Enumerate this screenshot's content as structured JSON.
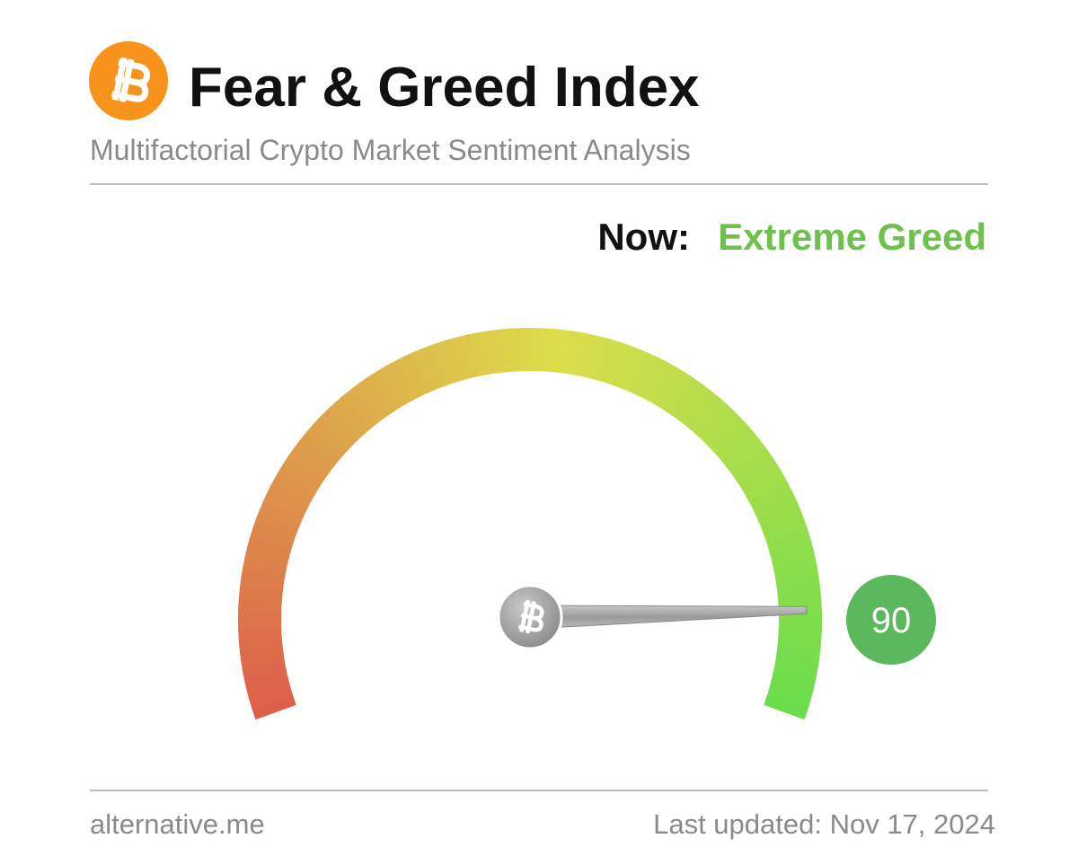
{
  "chart_data": {
    "type": "gauge",
    "title": "Fear & Greed Index",
    "subtitle": "Multifactorial Crypto Market Sentiment Analysis",
    "now_label": "Now:",
    "status": "Extreme Greed",
    "status_color": "#6cc24a",
    "value": 90,
    "value_color": "#5cb85c",
    "ylim": [
      0,
      100
    ],
    "source": "alternative.me",
    "updated": "Last updated: Nov 17, 2024"
  }
}
